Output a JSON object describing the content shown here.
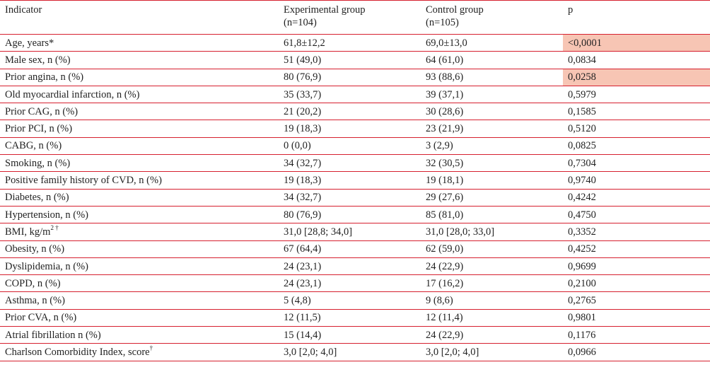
{
  "table": {
    "columns": [
      {
        "line1": "Indicator",
        "line2": ""
      },
      {
        "line1": "Experimental group",
        "line2": "(n=104)"
      },
      {
        "line1": "Control group",
        "line2": "(n=105)"
      },
      {
        "line1": "p",
        "line2": ""
      }
    ],
    "highlight_color": "#f7c5b4",
    "rows": [
      {
        "label": "Age, years*",
        "sup": "",
        "exp": "61,8±12,2",
        "ctrl": "69,0±13,0",
        "p": "<0,0001",
        "highlight": true
      },
      {
        "label": "Male sex, n (%)",
        "sup": "",
        "exp": "51 (49,0)",
        "ctrl": "64 (61,0)",
        "p": "0,0834",
        "highlight": false
      },
      {
        "label": "Prior angina, n (%)",
        "sup": "",
        "exp": "80 (76,9)",
        "ctrl": "93 (88,6)",
        "p": "0,0258",
        "highlight": true
      },
      {
        "label": "Old myocardial infarction, n (%)",
        "sup": "",
        "exp": "35 (33,7)",
        "ctrl": "39 (37,1)",
        "p": "0,5979",
        "highlight": false
      },
      {
        "label": "Prior CAG, n (%)",
        "sup": "",
        "exp": "21 (20,2)",
        "ctrl": "30 (28,6)",
        "p": "0,1585",
        "highlight": false
      },
      {
        "label": "Prior PCI, n (%)",
        "sup": "",
        "exp": "19 (18,3)",
        "ctrl": "23 (21,9)",
        "p": "0,5120",
        "highlight": false
      },
      {
        "label": "CABG, n (%)",
        "sup": "",
        "exp": "0 (0,0)",
        "ctrl": "3 (2,9)",
        "p": "0,0825",
        "highlight": false
      },
      {
        "label": "Smoking, n (%)",
        "sup": "",
        "exp": "34 (32,7)",
        "ctrl": "32 (30,5)",
        "p": "0,7304",
        "highlight": false
      },
      {
        "label": "Positive family history of CVD, n (%)",
        "sup": "",
        "exp": "19 (18,3)",
        "ctrl": "19 (18,1)",
        "p": "0,9740",
        "highlight": false
      },
      {
        "label": "Diabetes, n (%)",
        "sup": "",
        "exp": "34 (32,7)",
        "ctrl": "29 (27,6)",
        "p": "0,4242",
        "highlight": false
      },
      {
        "label": "Hypertension, n (%)",
        "sup": "",
        "exp": "80 (76,9)",
        "ctrl": "85 (81,0)",
        "p": "0,4750",
        "highlight": false
      },
      {
        "label": "BMI, kg/m",
        "sup": "2 †",
        "exp": "31,0 [28,8; 34,0]",
        "ctrl": "31,0 [28,0; 33,0]",
        "p": "0,3352",
        "highlight": false
      },
      {
        "label": "Obesity, n (%)",
        "sup": "",
        "exp": "67 (64,4)",
        "ctrl": "62 (59,0)",
        "p": "0,4252",
        "highlight": false
      },
      {
        "label": "Dyslipidemia, n (%)",
        "sup": "",
        "exp": "24 (23,1)",
        "ctrl": "24 (22,9)",
        "p": "0,9699",
        "highlight": false
      },
      {
        "label": "COPD, n (%)",
        "sup": "",
        "exp": "24 (23,1)",
        "ctrl": "17 (16,2)",
        "p": "0,2100",
        "highlight": false
      },
      {
        "label": "Asthma, n (%)",
        "sup": "",
        "exp": "5 (4,8)",
        "ctrl": "9 (8,6)",
        "p": "0,2765",
        "highlight": false
      },
      {
        "label": "Prior CVA, n (%)",
        "sup": "",
        "exp": "12 (11,5)",
        "ctrl": "12 (11,4)",
        "p": "0,9801",
        "highlight": false
      },
      {
        "label": "Atrial fibrillation n (%)",
        "sup": "",
        "exp": "15 (14,4)",
        "ctrl": "24 (22,9)",
        "p": "0,1176",
        "highlight": false
      },
      {
        "label": "Charlson Comorbidity Index, score",
        "sup": "†",
        "exp": "3,0 [2,0; 4,0]",
        "ctrl": "3,0 [2,0; 4,0]",
        "p": "0,0966",
        "highlight": false
      }
    ]
  }
}
